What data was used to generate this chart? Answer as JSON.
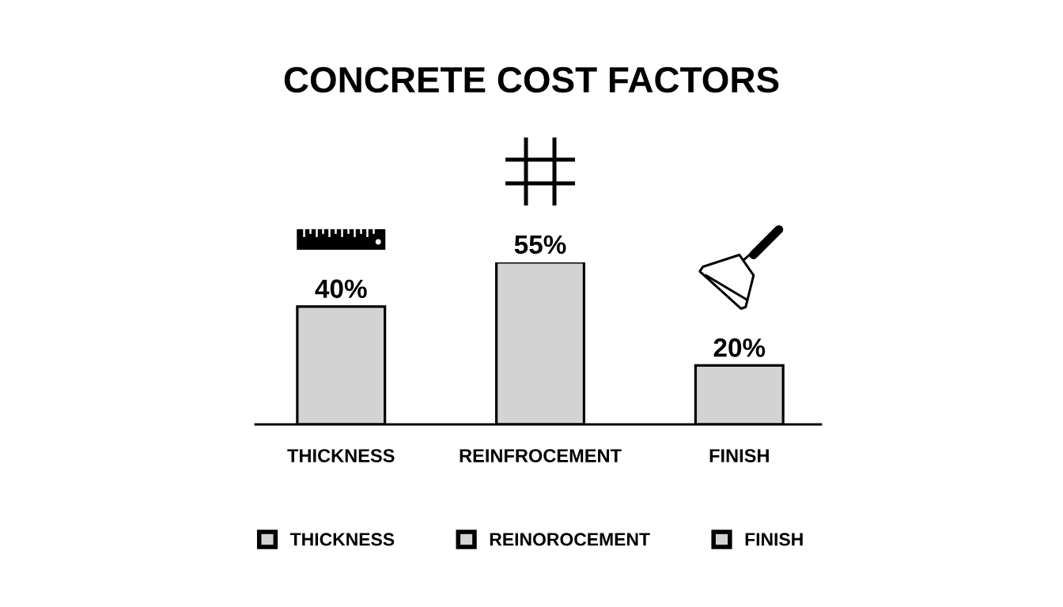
{
  "chart_data": {
    "type": "bar",
    "title": "CONCRETE COST FACTORS",
    "categories": [
      "THICKNESS",
      "REINFROCEMENT",
      "FINISH"
    ],
    "stacked": true,
    "series": [
      {
        "name": "THICKNESS",
        "color": "#d3d3d3",
        "values": [
          40,
          null,
          null
        ],
        "value_labels": [
          "40%",
          null,
          null
        ]
      },
      {
        "name": "REINOROCEMENT",
        "color": "#d3d3d3",
        "values": [
          null,
          55,
          null
        ],
        "value_labels": [
          null,
          "55%",
          null
        ]
      },
      {
        "name": "FINISH",
        "color": "#d3d3d3",
        "values": [
          null,
          null,
          20
        ],
        "value_labels": [
          null,
          null,
          "20%"
        ]
      }
    ],
    "legend": "bottom"
  }
}
